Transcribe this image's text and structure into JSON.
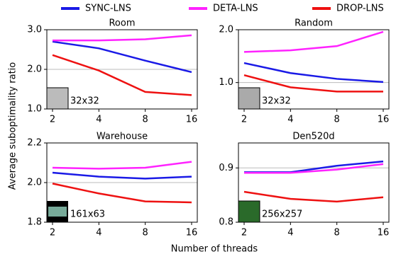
{
  "xlabel": "Number of threads",
  "ylabel": "Average suboptimality ratio",
  "chart_data": [
    {
      "type": "line",
      "title": "Room",
      "annotation": "32x32",
      "categories": [
        "2",
        "4",
        "8",
        "16"
      ],
      "ylim": [
        1.0,
        3.0
      ],
      "yticks": [
        {
          "value": 1,
          "label": "1.0"
        },
        {
          "value": 2,
          "label": "2.0"
        },
        {
          "value": 3,
          "label": "3.0"
        }
      ],
      "grid": true,
      "series": [
        {
          "name": "SYNC-LNS",
          "color": "#1a1ae6",
          "values": [
            2.7,
            2.53,
            2.22,
            1.93
          ]
        },
        {
          "name": "DETA-LNS",
          "color": "#ff22ff",
          "values": [
            2.73,
            2.73,
            2.76,
            2.86
          ]
        },
        {
          "name": "DROP-LNS",
          "color": "#ee1111",
          "values": [
            2.36,
            1.97,
            1.43,
            1.35
          ]
        }
      ]
    },
    {
      "type": "line",
      "title": "Random",
      "annotation": "32x32",
      "categories": [
        "2",
        "4",
        "8",
        "16"
      ],
      "ylim": [
        0.5,
        2.0
      ],
      "yticks": [
        {
          "value": 1,
          "label": "1.0"
        },
        {
          "value": 2,
          "label": "2.0"
        }
      ],
      "grid": true,
      "series": [
        {
          "values": [
            1.37,
            1.18,
            1.07,
            1.01
          ]
        },
        {
          "values": [
            1.58,
            1.61,
            1.69,
            1.96
          ]
        },
        {
          "values": [
            1.14,
            0.91,
            0.83,
            0.83
          ]
        }
      ]
    },
    {
      "type": "line",
      "title": "Warehouse",
      "annotation": "161x63",
      "categories": [
        "2",
        "4",
        "8",
        "16"
      ],
      "ylim": [
        1.8,
        2.2
      ],
      "yticks": [
        1.8,
        {
          "value": 2,
          "label": "2.0"
        },
        2.2
      ],
      "grid": true,
      "series": [
        {
          "values": [
            2.05,
            2.03,
            2.02,
            2.03
          ]
        },
        {
          "values": [
            2.075,
            2.07,
            2.075,
            2.105
          ]
        },
        {
          "values": [
            1.995,
            1.945,
            1.905,
            1.9
          ]
        }
      ]
    },
    {
      "type": "line",
      "title": "Den520d",
      "annotation": "256x257",
      "categories": [
        "2",
        "4",
        "8",
        "16"
      ],
      "ylim": [
        0.8,
        0.946
      ],
      "yticks": [
        0.8,
        0.9
      ],
      "grid": true,
      "series": [
        {
          "values": [
            0.892,
            0.892,
            0.904,
            0.912
          ]
        },
        {
          "values": [
            0.891,
            0.891,
            0.897,
            0.907
          ]
        },
        {
          "values": [
            0.856,
            0.843,
            0.838,
            0.846
          ]
        }
      ]
    }
  ]
}
